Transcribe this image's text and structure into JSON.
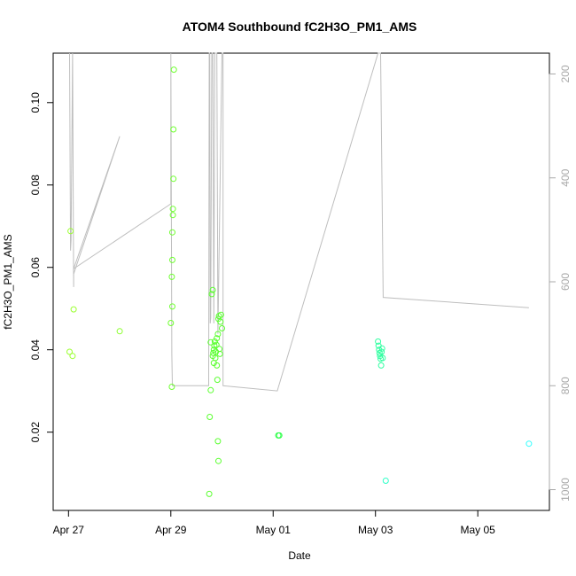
{
  "chart_data": {
    "type": "scatter",
    "title": "ATOM4 Southbound fC2H3O_PM1_AMS",
    "xlabel": "Date",
    "ylabel": "fC2H3O_PM1_AMS",
    "x_ticks": [
      "Apr 27",
      "Apr 29",
      "May 01",
      "May 03",
      "May 05"
    ],
    "x_tick_days": [
      0,
      2,
      4,
      6,
      8
    ],
    "xlim_days": [
      -0.3,
      9.4
    ],
    "ylim": [
      0.001,
      0.112
    ],
    "y_ticks": [
      0.02,
      0.04,
      0.06,
      0.08,
      0.1
    ],
    "y_tick_labels": [
      "0.02",
      "0.04",
      "0.06",
      "0.08",
      "0.10"
    ],
    "right_axis": {
      "ticks": [
        200,
        400,
        600,
        800,
        1000
      ],
      "tick_labels": [
        "200",
        "400",
        "600",
        "800",
        "1000"
      ],
      "ylim_reversed": [
        1040,
        160
      ],
      "color": "#a9a9a9"
    },
    "grid": false,
    "series": [
      {
        "color_note": "point colors shift from yellow-green to cyan over time",
        "points": [
          {
            "x": 0.02,
            "y": 0.0395,
            "c": "#9aff2f"
          },
          {
            "x": 0.04,
            "y": 0.0688,
            "c": "#9aff2f"
          },
          {
            "x": 0.08,
            "y": 0.0385,
            "c": "#9aff2f"
          },
          {
            "x": 0.1,
            "y": 0.0498,
            "c": "#9aff2f"
          },
          {
            "x": 1.0,
            "y": 0.0445,
            "c": "#8cff2f"
          },
          {
            "x": 2.0,
            "y": 0.0465,
            "c": "#6eff2f"
          },
          {
            "x": 2.02,
            "y": 0.031,
            "c": "#6eff2f"
          },
          {
            "x": 2.02,
            "y": 0.0577,
            "c": "#6eff2f"
          },
          {
            "x": 2.03,
            "y": 0.0618,
            "c": "#6eff2f"
          },
          {
            "x": 2.03,
            "y": 0.0685,
            "c": "#6eff2f"
          },
          {
            "x": 2.04,
            "y": 0.0727,
            "c": "#6eff2f"
          },
          {
            "x": 2.04,
            "y": 0.0742,
            "c": "#6eff2f"
          },
          {
            "x": 2.05,
            "y": 0.0815,
            "c": "#6eff2f"
          },
          {
            "x": 2.05,
            "y": 0.0935,
            "c": "#6eff2f"
          },
          {
            "x": 2.06,
            "y": 0.108,
            "c": "#6eff2f"
          },
          {
            "x": 2.03,
            "y": 0.0505,
            "c": "#6eff2f"
          },
          {
            "x": 2.75,
            "y": 0.005,
            "c": "#5aff2f"
          },
          {
            "x": 2.76,
            "y": 0.0237,
            "c": "#5aff2f"
          },
          {
            "x": 2.78,
            "y": 0.0302,
            "c": "#5aff2f"
          },
          {
            "x": 2.78,
            "y": 0.0418,
            "c": "#5aff2f"
          },
          {
            "x": 2.8,
            "y": 0.0535,
            "c": "#5aff2f"
          },
          {
            "x": 2.82,
            "y": 0.0545,
            "c": "#5aff2f"
          },
          {
            "x": 2.82,
            "y": 0.0385,
            "c": "#5aff2f"
          },
          {
            "x": 2.83,
            "y": 0.0392,
            "c": "#5aff2f"
          },
          {
            "x": 2.84,
            "y": 0.04,
            "c": "#5aff2f"
          },
          {
            "x": 2.85,
            "y": 0.041,
            "c": "#5aff2f"
          },
          {
            "x": 2.86,
            "y": 0.042,
            "c": "#5aff2f"
          },
          {
            "x": 2.84,
            "y": 0.0368,
            "c": "#5aff2f"
          },
          {
            "x": 2.87,
            "y": 0.038,
            "c": "#5aff2f"
          },
          {
            "x": 2.88,
            "y": 0.0395,
            "c": "#5aff2f"
          },
          {
            "x": 2.89,
            "y": 0.0412,
            "c": "#5aff2f"
          },
          {
            "x": 2.9,
            "y": 0.0428,
            "c": "#5aff2f"
          },
          {
            "x": 2.9,
            "y": 0.0362,
            "c": "#5aff2f"
          },
          {
            "x": 2.91,
            "y": 0.0327,
            "c": "#5aff2f"
          },
          {
            "x": 2.92,
            "y": 0.0178,
            "c": "#5aff2f"
          },
          {
            "x": 2.93,
            "y": 0.013,
            "c": "#5aff2f"
          },
          {
            "x": 2.92,
            "y": 0.0438,
            "c": "#5aff2f"
          },
          {
            "x": 2.93,
            "y": 0.0475,
            "c": "#5aff2f"
          },
          {
            "x": 2.94,
            "y": 0.0482,
            "c": "#5aff2f"
          },
          {
            "x": 2.95,
            "y": 0.0402,
            "c": "#5aff2f"
          },
          {
            "x": 2.96,
            "y": 0.039,
            "c": "#5aff2f"
          },
          {
            "x": 2.97,
            "y": 0.0468,
            "c": "#5aff2f"
          },
          {
            "x": 2.98,
            "y": 0.0485,
            "c": "#5aff2f"
          },
          {
            "x": 3.0,
            "y": 0.0452,
            "c": "#5aff2f"
          },
          {
            "x": 4.1,
            "y": 0.0192,
            "c": "#2fff4a"
          },
          {
            "x": 4.12,
            "y": 0.0192,
            "c": "#2fff4a"
          },
          {
            "x": 6.05,
            "y": 0.042,
            "c": "#2fffa0"
          },
          {
            "x": 6.06,
            "y": 0.041,
            "c": "#2fffa0"
          },
          {
            "x": 6.07,
            "y": 0.04,
            "c": "#2fffa0"
          },
          {
            "x": 6.08,
            "y": 0.0392,
            "c": "#2fffa0"
          },
          {
            "x": 6.09,
            "y": 0.0385,
            "c": "#2fffa0"
          },
          {
            "x": 6.1,
            "y": 0.0378,
            "c": "#2fffa0"
          },
          {
            "x": 6.11,
            "y": 0.0362,
            "c": "#2fffa0"
          },
          {
            "x": 6.12,
            "y": 0.0395,
            "c": "#2fffa0"
          },
          {
            "x": 6.13,
            "y": 0.0403,
            "c": "#2fffa0"
          },
          {
            "x": 6.14,
            "y": 0.038,
            "c": "#2fffa0"
          },
          {
            "x": 6.2,
            "y": 0.0082,
            "c": "#2fffc8"
          },
          {
            "x": 9.0,
            "y": 0.0172,
            "c": "#2fffff"
          }
        ]
      }
    ],
    "altitude_line": {
      "color": "#bebebe",
      "points": [
        [
          0.02,
          150
        ],
        [
          0.04,
          540
        ],
        [
          0.05,
          520
        ],
        [
          0.08,
          150
        ],
        [
          0.08,
          150
        ],
        [
          0.1,
          610
        ],
        [
          0.1,
          585
        ],
        [
          1.0,
          320
        ],
        [
          0.1,
          575
        ],
        [
          2.0,
          450
        ],
        [
          2.0,
          150
        ],
        [
          2.02,
          740
        ],
        [
          2.03,
          800
        ],
        [
          2.74,
          800
        ],
        [
          2.75,
          150
        ],
        [
          2.76,
          150
        ],
        [
          2.77,
          680
        ],
        [
          2.78,
          670
        ],
        [
          2.8,
          150
        ],
        [
          2.82,
          150
        ],
        [
          2.84,
          680
        ],
        [
          2.86,
          150
        ],
        [
          2.9,
          150
        ],
        [
          2.92,
          700
        ],
        [
          3.0,
          150
        ],
        [
          3.02,
          150
        ],
        [
          3.02,
          800
        ],
        [
          4.08,
          810
        ],
        [
          6.05,
          150
        ],
        [
          6.1,
          150
        ],
        [
          6.15,
          630
        ],
        [
          9.0,
          650
        ]
      ]
    }
  }
}
